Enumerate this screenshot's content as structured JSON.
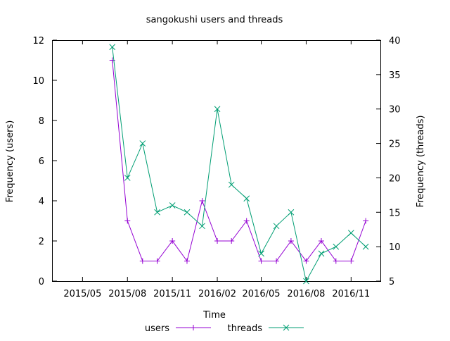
{
  "chart_data": {
    "type": "line",
    "title": "sangokushi users and threads",
    "xlabel": "Time",
    "ylabel_left": "Frequency (users)",
    "ylabel_right": "Frequency (threads)",
    "x_ticks": [
      "2015/05",
      "2015/08",
      "2015/11",
      "2016/02",
      "2016/05",
      "2016/08",
      "2016/11"
    ],
    "x_tick_dates": [
      "2015-05-01",
      "2015-08-01",
      "2015-11-01",
      "2016-02-01",
      "2016-05-01",
      "2016-08-01",
      "2016-11-01"
    ],
    "xlim": [
      "2015-03-01",
      "2016-12-31"
    ],
    "ylim_left": [
      0,
      12
    ],
    "ylim_right": [
      5,
      40
    ],
    "y_ticks_left": [
      0,
      2,
      4,
      6,
      8,
      10,
      12
    ],
    "y_ticks_right": [
      5,
      10,
      15,
      20,
      25,
      30,
      35,
      40
    ],
    "legend_position": "bottom",
    "grid": false,
    "series": [
      {
        "name": "users",
        "axis": "left",
        "color": "#9400d3",
        "marker": "plus",
        "x": [
          "2015-07-01",
          "2015-08-01",
          "2015-09-01",
          "2015-10-01",
          "2015-11-01",
          "2015-12-01",
          "2016-01-01",
          "2016-02-01",
          "2016-03-01",
          "2016-04-01",
          "2016-05-01",
          "2016-06-01",
          "2016-07-01",
          "2016-08-01",
          "2016-09-01",
          "2016-10-01",
          "2016-11-01",
          "2016-12-01"
        ],
        "y": [
          11,
          3,
          1,
          1,
          2,
          1,
          4,
          2,
          2,
          3,
          1,
          1,
          2,
          1,
          2,
          1,
          1,
          3
        ]
      },
      {
        "name": "threads",
        "axis": "right",
        "color": "#009e73",
        "marker": "cross",
        "x": [
          "2015-07-01",
          "2015-08-01",
          "2015-09-01",
          "2015-10-01",
          "2015-11-01",
          "2015-12-01",
          "2016-01-01",
          "2016-02-01",
          "2016-03-01",
          "2016-04-01",
          "2016-05-01",
          "2016-06-01",
          "2016-07-01",
          "2016-08-01",
          "2016-09-01",
          "2016-10-01",
          "2016-11-01",
          "2016-12-01"
        ],
        "y": [
          39,
          20,
          25,
          15,
          16,
          15,
          13,
          30,
          19,
          17,
          9,
          13,
          15,
          5,
          9,
          10,
          12,
          10
        ]
      }
    ]
  }
}
